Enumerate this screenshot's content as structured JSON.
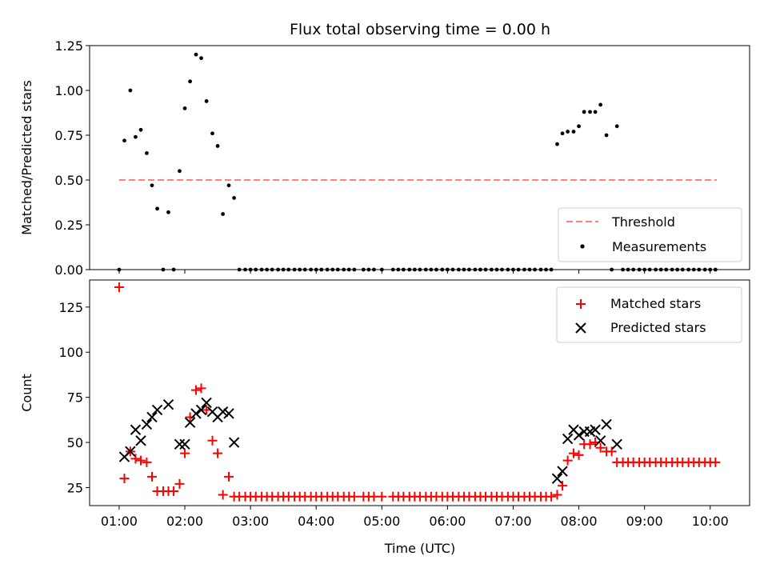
{
  "chart_data": {
    "type": "scatter",
    "title": "Flux total observing time = 0.00 h",
    "xlabel": "Time (UTC)",
    "xlim_hours": [
      0.55,
      10.6
    ],
    "xticks": [
      {
        "value": 1,
        "label": "01:00"
      },
      {
        "value": 2,
        "label": "02:00"
      },
      {
        "value": 3,
        "label": "03:00"
      },
      {
        "value": 4,
        "label": "04:00"
      },
      {
        "value": 5,
        "label": "05:00"
      },
      {
        "value": 6,
        "label": "06:00"
      },
      {
        "value": 7,
        "label": "07:00"
      },
      {
        "value": 8,
        "label": "08:00"
      },
      {
        "value": 9,
        "label": "09:00"
      },
      {
        "value": 10,
        "label": "10:00"
      }
    ],
    "panels": [
      {
        "ylabel": "Matched/Predicted stars",
        "ylim": [
          0,
          1.25
        ],
        "yticks": [
          {
            "value": 0,
            "label": "0.00"
          },
          {
            "value": 0.25,
            "label": "0.25"
          },
          {
            "value": 0.5,
            "label": "0.50"
          },
          {
            "value": 0.75,
            "label": "0.75"
          },
          {
            "value": 1.0,
            "label": "1.00"
          },
          {
            "value": 1.25,
            "label": "1.25"
          }
        ],
        "legend": {
          "position": "lower-right",
          "entries": [
            "Threshold",
            "Measurements"
          ]
        },
        "series": [
          {
            "name": "Threshold",
            "kind": "dashed-line",
            "color": "#ff7f7f",
            "x": [
              1.0,
              10.1
            ],
            "y": [
              0.5,
              0.5
            ]
          },
          {
            "name": "Measurements",
            "kind": "dot",
            "color": "#000000",
            "x": [
              1.0,
              1.08,
              1.17,
              1.25,
              1.33,
              1.42,
              1.5,
              1.58,
              1.67,
              1.75,
              1.83,
              1.92,
              2.0,
              2.08,
              2.17,
              2.25,
              2.33,
              2.42,
              2.5,
              2.58,
              2.67,
              2.75,
              2.83,
              2.92,
              3.0,
              3.08,
              3.17,
              3.25,
              3.33,
              3.42,
              3.5,
              3.58,
              3.67,
              3.75,
              3.83,
              3.92,
              4.0,
              4.08,
              4.17,
              4.25,
              4.33,
              4.42,
              4.5,
              4.58,
              4.72,
              4.8,
              4.88,
              5.0,
              5.17,
              5.25,
              5.33,
              5.42,
              5.5,
              5.58,
              5.67,
              5.75,
              5.83,
              5.92,
              6.0,
              6.08,
              6.17,
              6.25,
              6.33,
              6.42,
              6.5,
              6.58,
              6.67,
              6.75,
              6.83,
              6.92,
              7.0,
              7.08,
              7.17,
              7.25,
              7.33,
              7.42,
              7.5,
              7.58,
              7.67,
              7.75,
              7.83,
              7.92,
              8.0,
              8.08,
              8.17,
              8.25,
              8.33,
              8.42,
              8.5,
              8.58,
              8.67,
              8.75,
              8.83,
              8.92,
              9.0,
              9.08,
              9.17,
              9.25,
              9.33,
              9.42,
              9.5,
              9.58,
              9.67,
              9.75,
              9.83,
              9.92,
              10.0,
              10.08
            ],
            "y": [
              0.0,
              0.72,
              1.0,
              0.74,
              0.78,
              0.65,
              0.47,
              0.34,
              0.0,
              0.32,
              0.0,
              0.55,
              0.9,
              1.05,
              1.2,
              1.18,
              0.94,
              0.76,
              0.69,
              0.31,
              0.47,
              0.4,
              0.0,
              0.0,
              0.0,
              0.0,
              0.0,
              0.0,
              0.0,
              0.0,
              0.0,
              0.0,
              0.0,
              0.0,
              0.0,
              0.0,
              0.0,
              0.0,
              0.0,
              0.0,
              0.0,
              0.0,
              0.0,
              0.0,
              0.0,
              0.0,
              0.0,
              0.0,
              0.0,
              0.0,
              0.0,
              0.0,
              0.0,
              0.0,
              0.0,
              0.0,
              0.0,
              0.0,
              0.0,
              0.0,
              0.0,
              0.0,
              0.0,
              0.0,
              0.0,
              0.0,
              0.0,
              0.0,
              0.0,
              0.0,
              0.0,
              0.0,
              0.0,
              0.0,
              0.0,
              0.0,
              0.0,
              0.0,
              0.7,
              0.76,
              0.77,
              0.77,
              0.8,
              0.88,
              0.88,
              0.88,
              0.92,
              0.75,
              0.0,
              0.8,
              0.0,
              0.0,
              0.0,
              0.0,
              0.0,
              0.0,
              0.0,
              0.0,
              0.0,
              0.0,
              0.0,
              0.0,
              0.0,
              0.0,
              0.0,
              0.0,
              0.0,
              0.0
            ]
          }
        ]
      },
      {
        "ylabel": "Count",
        "ylim": [
          15,
          140
        ],
        "yticks": [
          {
            "value": 25,
            "label": "25"
          },
          {
            "value": 50,
            "label": "50"
          },
          {
            "value": 75,
            "label": "75"
          },
          {
            "value": 100,
            "label": "100"
          },
          {
            "value": 125,
            "label": "125"
          }
        ],
        "legend": {
          "position": "upper-right",
          "entries": [
            "Matched stars",
            "Predicted stars"
          ]
        },
        "series": [
          {
            "name": "Matched stars",
            "kind": "plus",
            "color": "#ff0000",
            "x": [
              1.0,
              1.08,
              1.17,
              1.25,
              1.33,
              1.42,
              1.5,
              1.58,
              1.67,
              1.75,
              1.83,
              1.92,
              2.0,
              2.08,
              2.17,
              2.25,
              2.33,
              2.42,
              2.5,
              2.58,
              2.67,
              2.75,
              2.83,
              2.92,
              3.0,
              3.08,
              3.17,
              3.25,
              3.33,
              3.42,
              3.5,
              3.58,
              3.67,
              3.75,
              3.83,
              3.92,
              4.0,
              4.08,
              4.17,
              4.25,
              4.33,
              4.42,
              4.5,
              4.58,
              4.72,
              4.8,
              4.88,
              5.0,
              5.17,
              5.25,
              5.33,
              5.42,
              5.5,
              5.58,
              5.67,
              5.75,
              5.83,
              5.92,
              6.0,
              6.08,
              6.17,
              6.25,
              6.33,
              6.42,
              6.5,
              6.58,
              6.67,
              6.75,
              6.83,
              6.92,
              7.0,
              7.08,
              7.17,
              7.25,
              7.33,
              7.42,
              7.5,
              7.58,
              7.67,
              7.75,
              7.83,
              7.92,
              8.0,
              8.08,
              8.17,
              8.25,
              8.33,
              8.42,
              8.5,
              8.58,
              8.67,
              8.75,
              8.83,
              8.92,
              9.0,
              9.08,
              9.17,
              9.25,
              9.33,
              9.42,
              9.5,
              9.58,
              9.67,
              9.75,
              9.83,
              9.92,
              10.0,
              10.08
            ],
            "y": [
              136,
              30,
              45,
              41,
              40,
              39,
              31,
              23,
              23,
              23,
              23,
              27,
              44,
              64,
              79,
              80,
              68,
              51,
              44,
              21,
              31,
              20,
              20,
              20,
              20,
              20,
              20,
              20,
              20,
              20,
              20,
              20,
              20,
              20,
              20,
              20,
              20,
              20,
              20,
              20,
              20,
              20,
              20,
              20,
              20,
              20,
              20,
              20,
              20,
              20,
              20,
              20,
              20,
              20,
              20,
              20,
              20,
              20,
              20,
              20,
              20,
              20,
              20,
              20,
              20,
              20,
              20,
              20,
              20,
              20,
              20,
              20,
              20,
              20,
              20,
              20,
              20,
              20,
              21,
              26,
              40,
              44,
              43,
              49,
              49,
              50,
              47,
              45,
              45,
              39,
              39,
              39,
              39,
              39,
              39,
              39,
              39,
              39,
              39,
              39,
              39,
              39,
              39,
              39,
              39,
              39,
              39,
              39
            ]
          },
          {
            "name": "Predicted stars",
            "kind": "x",
            "color": "#000000",
            "x": [
              1.08,
              1.17,
              1.25,
              1.33,
              1.42,
              1.5,
              1.58,
              1.75,
              1.92,
              2.0,
              2.08,
              2.17,
              2.25,
              2.33,
              2.42,
              2.5,
              2.58,
              2.67,
              2.75,
              7.67,
              7.75,
              7.83,
              7.92,
              8.0,
              8.08,
              8.17,
              8.25,
              8.33,
              8.42,
              8.58
            ],
            "y": [
              42,
              45,
              57,
              51,
              60,
              64,
              68,
              71,
              49,
              49,
              61,
              66,
              68,
              72,
              67,
              64,
              67,
              66,
              50,
              30,
              34,
              52,
              57,
              54,
              56,
              56,
              57,
              51,
              60,
              49
            ]
          }
        ]
      }
    ]
  }
}
